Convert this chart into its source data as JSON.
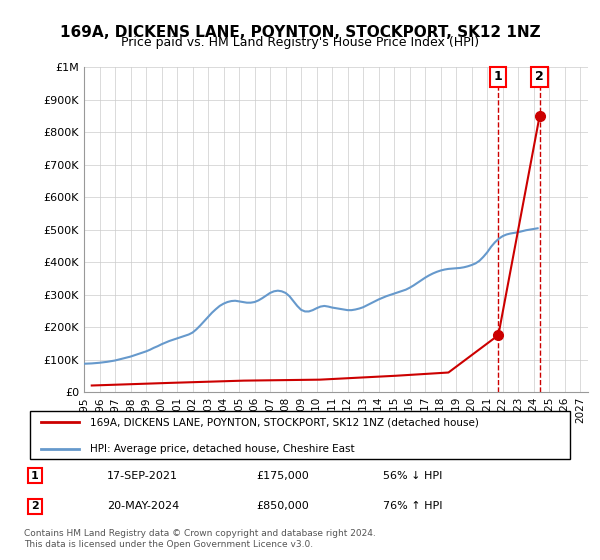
{
  "title": "169A, DICKENS LANE, POYNTON, STOCKPORT, SK12 1NZ",
  "subtitle": "Price paid vs. HM Land Registry's House Price Index (HPI)",
  "xlabel": "",
  "ylabel": "",
  "ylim": [
    0,
    1000000
  ],
  "yticks": [
    0,
    100000,
    200000,
    300000,
    400000,
    500000,
    600000,
    700000,
    800000,
    900000,
    1000000
  ],
  "ytick_labels": [
    "£0",
    "£100K",
    "£200K",
    "£300K",
    "£400K",
    "£500K",
    "£600K",
    "£700K",
    "£800K",
    "£900K",
    "£1M"
  ],
  "xlim_start": 1995.0,
  "xlim_end": 2027.5,
  "xticks": [
    1995,
    1996,
    1997,
    1998,
    1999,
    2000,
    2001,
    2002,
    2003,
    2004,
    2005,
    2006,
    2007,
    2008,
    2009,
    2010,
    2011,
    2012,
    2013,
    2014,
    2015,
    2016,
    2017,
    2018,
    2019,
    2020,
    2021,
    2022,
    2023,
    2024,
    2025,
    2026,
    2027
  ],
  "hpi_color": "#6699cc",
  "property_color": "#cc0000",
  "dashed_line_color": "#cc0000",
  "background_color": "#ffffff",
  "grid_color": "#cccccc",
  "legend_box_color": "#000000",
  "sale1_x": 2021.72,
  "sale1_y": 175000,
  "sale1_label": "1",
  "sale1_date": "17-SEP-2021",
  "sale1_price": "£175,000",
  "sale1_hpi": "56% ↓ HPI",
  "sale2_x": 2024.38,
  "sale2_y": 850000,
  "sale2_label": "2",
  "sale2_date": "20-MAY-2024",
  "sale2_price": "£850,000",
  "sale2_hpi": "76% ↑ HPI",
  "legend_line1": "169A, DICKENS LANE, POYNTON, STOCKPORT, SK12 1NZ (detached house)",
  "legend_line2": "HPI: Average price, detached house, Cheshire East",
  "footer": "Contains HM Land Registry data © Crown copyright and database right 2024.\nThis data is licensed under the Open Government Licence v3.0.",
  "hpi_data_x": [
    1995.0,
    1995.25,
    1995.5,
    1995.75,
    1996.0,
    1996.25,
    1996.5,
    1996.75,
    1997.0,
    1997.25,
    1997.5,
    1997.75,
    1998.0,
    1998.25,
    1998.5,
    1998.75,
    1999.0,
    1999.25,
    1999.5,
    1999.75,
    2000.0,
    2000.25,
    2000.5,
    2000.75,
    2001.0,
    2001.25,
    2001.5,
    2001.75,
    2002.0,
    2002.25,
    2002.5,
    2002.75,
    2003.0,
    2003.25,
    2003.5,
    2003.75,
    2004.0,
    2004.25,
    2004.5,
    2004.75,
    2005.0,
    2005.25,
    2005.5,
    2005.75,
    2006.0,
    2006.25,
    2006.5,
    2006.75,
    2007.0,
    2007.25,
    2007.5,
    2007.75,
    2008.0,
    2008.25,
    2008.5,
    2008.75,
    2009.0,
    2009.25,
    2009.5,
    2009.75,
    2010.0,
    2010.25,
    2010.5,
    2010.75,
    2011.0,
    2011.25,
    2011.5,
    2011.75,
    2012.0,
    2012.25,
    2012.5,
    2012.75,
    2013.0,
    2013.25,
    2013.5,
    2013.75,
    2014.0,
    2014.25,
    2014.5,
    2014.75,
    2015.0,
    2015.25,
    2015.5,
    2015.75,
    2016.0,
    2016.25,
    2016.5,
    2016.75,
    2017.0,
    2017.25,
    2017.5,
    2017.75,
    2018.0,
    2018.25,
    2018.5,
    2018.75,
    2019.0,
    2019.25,
    2019.5,
    2019.75,
    2020.0,
    2020.25,
    2020.5,
    2020.75,
    2021.0,
    2021.25,
    2021.5,
    2021.75,
    2022.0,
    2022.25,
    2022.5,
    2022.75,
    2023.0,
    2023.25,
    2023.5,
    2023.75,
    2024.0,
    2024.25
  ],
  "hpi_data_y": [
    87000,
    87500,
    88000,
    89000,
    90000,
    91500,
    93000,
    95000,
    97000,
    100000,
    103000,
    106000,
    109000,
    113000,
    117000,
    121000,
    125000,
    130000,
    136000,
    141000,
    147000,
    152000,
    157000,
    161000,
    165000,
    169000,
    173000,
    177000,
    183000,
    193000,
    205000,
    218000,
    231000,
    244000,
    255000,
    265000,
    272000,
    277000,
    280000,
    281000,
    279000,
    277000,
    275000,
    275000,
    277000,
    282000,
    289000,
    297000,
    305000,
    310000,
    312000,
    310000,
    305000,
    295000,
    280000,
    265000,
    253000,
    248000,
    248000,
    252000,
    258000,
    263000,
    265000,
    263000,
    260000,
    258000,
    256000,
    254000,
    252000,
    252000,
    254000,
    257000,
    261000,
    267000,
    273000,
    279000,
    285000,
    290000,
    295000,
    299000,
    303000,
    307000,
    311000,
    315000,
    321000,
    328000,
    336000,
    344000,
    352000,
    359000,
    365000,
    370000,
    374000,
    377000,
    379000,
    380000,
    381000,
    382000,
    384000,
    387000,
    391000,
    396000,
    404000,
    416000,
    430000,
    447000,
    461000,
    472000,
    480000,
    485000,
    488000,
    490000,
    492000,
    495000,
    498000,
    500000,
    502000,
    504000
  ],
  "property_data_x": [
    1995.5,
    2000.5,
    2005.3,
    2010.2,
    2015.1,
    2018.5,
    2021.72,
    2024.38
  ],
  "property_data_y": [
    20000,
    28000,
    35000,
    38000,
    50000,
    60000,
    175000,
    850000
  ]
}
